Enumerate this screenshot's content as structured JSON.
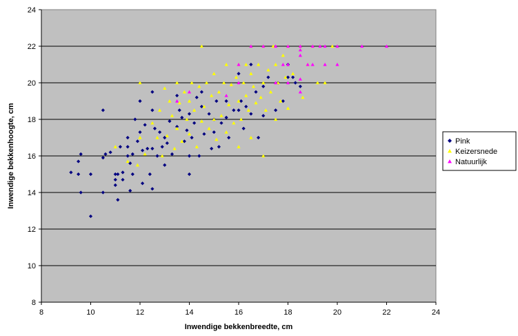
{
  "chart_data": {
    "type": "scatter",
    "title": "",
    "xlabel": "Inwendige bekkenbreedte, cm",
    "ylabel": "Inwendige bekkenhoogte, cm",
    "xlim": [
      8,
      24
    ],
    "ylim": [
      8,
      24
    ],
    "xticks": [
      8,
      10,
      12,
      14,
      16,
      18,
      20,
      22,
      24
    ],
    "yticks": [
      8,
      10,
      12,
      14,
      16,
      18,
      20,
      22,
      24
    ],
    "grid": "horizontal",
    "plot_background": "#C0C0C0",
    "legend_position": "right",
    "series": [
      {
        "name": "Pink",
        "marker": "diamond",
        "color": "#000080",
        "points": [
          [
            9.2,
            15.1
          ],
          [
            9.5,
            15.0
          ],
          [
            9.5,
            15.7
          ],
          [
            9.6,
            16.1
          ],
          [
            9.6,
            14.0
          ],
          [
            10.0,
            12.7
          ],
          [
            10.0,
            15.0
          ],
          [
            10.5,
            18.5
          ],
          [
            10.5,
            15.9
          ],
          [
            10.5,
            14.0
          ],
          [
            10.6,
            16.1
          ],
          [
            10.8,
            16.2
          ],
          [
            11.0,
            15.0
          ],
          [
            11.0,
            14.7
          ],
          [
            11.0,
            14.4
          ],
          [
            11.1,
            15.0
          ],
          [
            11.1,
            13.6
          ],
          [
            11.2,
            16.5
          ],
          [
            11.3,
            15.1
          ],
          [
            11.3,
            14.7
          ],
          [
            11.5,
            16.5
          ],
          [
            11.5,
            17.0
          ],
          [
            11.5,
            16.0
          ],
          [
            11.6,
            14.1
          ],
          [
            11.6,
            15.6
          ],
          [
            11.7,
            16.1
          ],
          [
            11.7,
            15.0
          ],
          [
            11.8,
            18.0
          ],
          [
            11.9,
            16.8
          ],
          [
            12.0,
            19.0
          ],
          [
            12.0,
            17.3
          ],
          [
            12.1,
            16.3
          ],
          [
            12.1,
            14.5
          ],
          [
            12.2,
            17.7
          ],
          [
            12.3,
            16.4
          ],
          [
            12.4,
            15.0
          ],
          [
            12.5,
            19.5
          ],
          [
            12.5,
            18.5
          ],
          [
            12.5,
            16.4
          ],
          [
            12.5,
            14.2
          ],
          [
            12.6,
            17.5
          ],
          [
            12.7,
            16.0
          ],
          [
            12.8,
            17.3
          ],
          [
            12.9,
            16.5
          ],
          [
            13.0,
            17.0
          ],
          [
            13.0,
            15.5
          ],
          [
            13.1,
            16.7
          ],
          [
            13.2,
            17.9
          ],
          [
            13.3,
            16.1
          ],
          [
            13.5,
            19.3
          ],
          [
            13.5,
            17.6
          ],
          [
            13.6,
            18.5
          ],
          [
            13.7,
            18.1
          ],
          [
            13.8,
            16.8
          ],
          [
            13.9,
            17.4
          ],
          [
            14.0,
            18.3
          ],
          [
            14.0,
            15.0
          ],
          [
            14.0,
            16.0
          ],
          [
            14.1,
            17.0
          ],
          [
            14.2,
            17.8
          ],
          [
            14.3,
            19.2
          ],
          [
            14.4,
            16.0
          ],
          [
            14.5,
            18.7
          ],
          [
            14.5,
            19.5
          ],
          [
            14.6,
            17.2
          ],
          [
            14.8,
            18.3
          ],
          [
            14.9,
            16.4
          ],
          [
            15.0,
            18.0
          ],
          [
            15.0,
            17.3
          ],
          [
            15.1,
            19.0
          ],
          [
            15.2,
            16.5
          ],
          [
            15.3,
            17.8
          ],
          [
            15.5,
            18.1
          ],
          [
            15.5,
            19.0
          ],
          [
            15.6,
            17.0
          ],
          [
            15.8,
            18.5
          ],
          [
            16.0,
            18.5
          ],
          [
            16.0,
            20.5
          ],
          [
            16.1,
            19.0
          ],
          [
            16.2,
            17.5
          ],
          [
            16.3,
            18.7
          ],
          [
            16.5,
            21.0
          ],
          [
            16.5,
            18.3
          ],
          [
            16.7,
            19.5
          ],
          [
            16.8,
            17.0
          ],
          [
            17.0,
            18.2
          ],
          [
            17.0,
            19.8
          ],
          [
            17.2,
            20.3
          ],
          [
            17.5,
            18.5
          ],
          [
            17.6,
            20.0
          ],
          [
            17.8,
            19.0
          ],
          [
            18.0,
            21.0
          ],
          [
            18.0,
            20.3
          ],
          [
            18.2,
            20.3
          ],
          [
            18.3,
            20.0
          ],
          [
            18.5,
            19.8
          ]
        ]
      },
      {
        "name": "Keizersnede",
        "marker": "triangle",
        "color": "#FFFF00",
        "points": [
          [
            11.0,
            16.5
          ],
          [
            11.5,
            15.7
          ],
          [
            11.9,
            15.5
          ],
          [
            12.0,
            20.0
          ],
          [
            12.0,
            17.0
          ],
          [
            12.2,
            16.1
          ],
          [
            12.5,
            17.8
          ],
          [
            12.7,
            17.0
          ],
          [
            12.8,
            18.5
          ],
          [
            12.9,
            16.0
          ],
          [
            13.0,
            19.7
          ],
          [
            13.1,
            17.1
          ],
          [
            13.2,
            19.0
          ],
          [
            13.3,
            18.2
          ],
          [
            13.4,
            16.4
          ],
          [
            13.5,
            20.0
          ],
          [
            13.5,
            17.5
          ],
          [
            13.6,
            18.9
          ],
          [
            13.7,
            16.8
          ],
          [
            13.8,
            19.5
          ],
          [
            13.9,
            18.0
          ],
          [
            14.0,
            19.0
          ],
          [
            14.0,
            17.2
          ],
          [
            14.1,
            20.0
          ],
          [
            14.2,
            18.5
          ],
          [
            14.3,
            16.5
          ],
          [
            14.4,
            19.8
          ],
          [
            14.5,
            22.0
          ],
          [
            14.5,
            17.9
          ],
          [
            14.6,
            18.7
          ],
          [
            14.7,
            20.0
          ],
          [
            14.8,
            17.5
          ],
          [
            14.9,
            19.3
          ],
          [
            15.0,
            20.5
          ],
          [
            15.0,
            18.0
          ],
          [
            15.1,
            16.9
          ],
          [
            15.2,
            19.5
          ],
          [
            15.3,
            18.2
          ],
          [
            15.4,
            20.0
          ],
          [
            15.5,
            17.3
          ],
          [
            15.5,
            21.0
          ],
          [
            15.6,
            18.8
          ],
          [
            15.7,
            19.9
          ],
          [
            15.8,
            17.8
          ],
          [
            15.9,
            20.3
          ],
          [
            16.0,
            21.0
          ],
          [
            16.0,
            19.0
          ],
          [
            16.0,
            16.5
          ],
          [
            16.1,
            18.0
          ],
          [
            16.2,
            20.0
          ],
          [
            16.3,
            21.0
          ],
          [
            16.3,
            19.3
          ],
          [
            16.4,
            18.5
          ],
          [
            16.5,
            22.0
          ],
          [
            16.5,
            20.5
          ],
          [
            16.5,
            17.0
          ],
          [
            16.6,
            19.8
          ],
          [
            16.7,
            18.9
          ],
          [
            16.8,
            21.0
          ],
          [
            16.9,
            19.2
          ],
          [
            17.0,
            22.0
          ],
          [
            17.0,
            20.0
          ],
          [
            17.0,
            16.0
          ],
          [
            17.1,
            18.5
          ],
          [
            17.2,
            20.7
          ],
          [
            17.3,
            19.5
          ],
          [
            17.4,
            22.0
          ],
          [
            17.5,
            21.0
          ],
          [
            17.5,
            18.0
          ],
          [
            17.6,
            20.0
          ],
          [
            17.7,
            19.0
          ],
          [
            17.8,
            21.5
          ],
          [
            17.9,
            20.3
          ],
          [
            18.0,
            22.0
          ],
          [
            18.0,
            18.6
          ],
          [
            18.2,
            20.5
          ],
          [
            18.5,
            22.0
          ],
          [
            18.6,
            19.2
          ],
          [
            18.8,
            21.0
          ],
          [
            19.0,
            22.0
          ],
          [
            19.2,
            20.0
          ],
          [
            19.5,
            20.0
          ],
          [
            19.8,
            22.0
          ]
        ]
      },
      {
        "name": "Natuurlijk",
        "marker": "triangle",
        "color": "#FF00FF",
        "points": [
          [
            13.5,
            19.0
          ],
          [
            14.0,
            19.5
          ],
          [
            15.5,
            19.3
          ],
          [
            16.0,
            21.0
          ],
          [
            16.0,
            20.0
          ],
          [
            16.5,
            22.0
          ],
          [
            17.0,
            22.0
          ],
          [
            17.5,
            22.0
          ],
          [
            17.5,
            20.0
          ],
          [
            17.8,
            21.0
          ],
          [
            18.0,
            22.0
          ],
          [
            18.0,
            21.0
          ],
          [
            18.0,
            20.0
          ],
          [
            18.5,
            22.0
          ],
          [
            18.5,
            21.8
          ],
          [
            18.5,
            21.5
          ],
          [
            18.5,
            20.2
          ],
          [
            18.5,
            19.5
          ],
          [
            18.8,
            21.0
          ],
          [
            19.0,
            22.0
          ],
          [
            19.0,
            21.0
          ],
          [
            19.3,
            22.0
          ],
          [
            19.5,
            22.0
          ],
          [
            19.5,
            21.0
          ],
          [
            20.0,
            22.0
          ],
          [
            20.0,
            21.0
          ],
          [
            21.0,
            22.0
          ],
          [
            22.0,
            22.0
          ]
        ]
      }
    ]
  }
}
